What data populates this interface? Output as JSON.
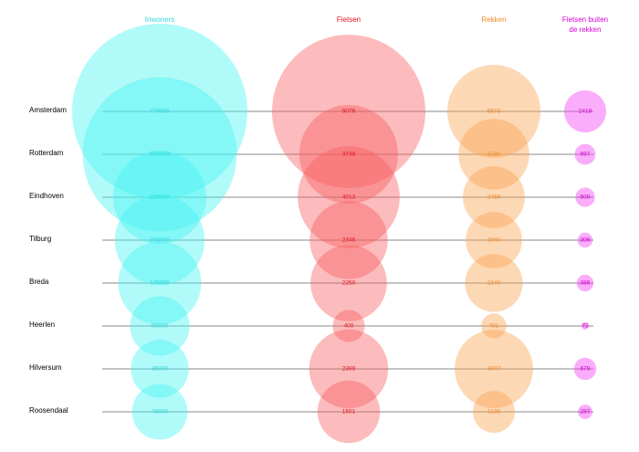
{
  "chart_data": {
    "type": "bubble",
    "rows": [
      "Amsterdam",
      "Rotterdam",
      "Eindhoven",
      "Tilburg",
      "Breda",
      "Heerlen",
      "Hilversum",
      "Roosendaal"
    ],
    "series": [
      {
        "name": "Inwoners",
        "color": "#45f2f2",
        "textColor": "#33d6df",
        "values": [
          779808,
          603000,
          220000,
          205000,
          175000,
          90000,
          85000,
          78000
        ],
        "labels": [
          "779808",
          "603000",
          "220000",
          "205000",
          "175000",
          "90000",
          "85000",
          "78000"
        ]
      },
      {
        "name": "Fietsen",
        "color": "#f75c60",
        "textColor": "#e0151f",
        "values": [
          9076,
          3748,
          4013,
          2346,
          2250,
          400,
          2399,
          1501
        ],
        "labels": [
          "9076",
          "3748",
          "4013",
          "2346",
          "2250",
          "400",
          "2399",
          "1501"
        ]
      },
      {
        "name": "Rekken",
        "color": "#fba14f",
        "textColor": "#f28a2a",
        "values": [
          5573,
          3230,
          2468,
          2040,
          2140,
          401,
          3947,
          1136
        ],
        "labels": [
          "5573",
          "3230",
          "2468",
          "2040",
          "2140",
          "401",
          "3947",
          "1136"
        ]
      },
      {
        "name": "Fietsen buiten de rekken",
        "title_lines": [
          "Fietsen buiten",
          "de rekken"
        ],
        "color": "#f23cf2",
        "textColor": "#d600d6",
        "values": [
          2419,
          597,
          509,
          306,
          386,
          72,
          679,
          287
        ],
        "labels": [
          "2419",
          "597",
          "509",
          "306",
          "386",
          "72",
          "679",
          "287"
        ]
      }
    ]
  }
}
